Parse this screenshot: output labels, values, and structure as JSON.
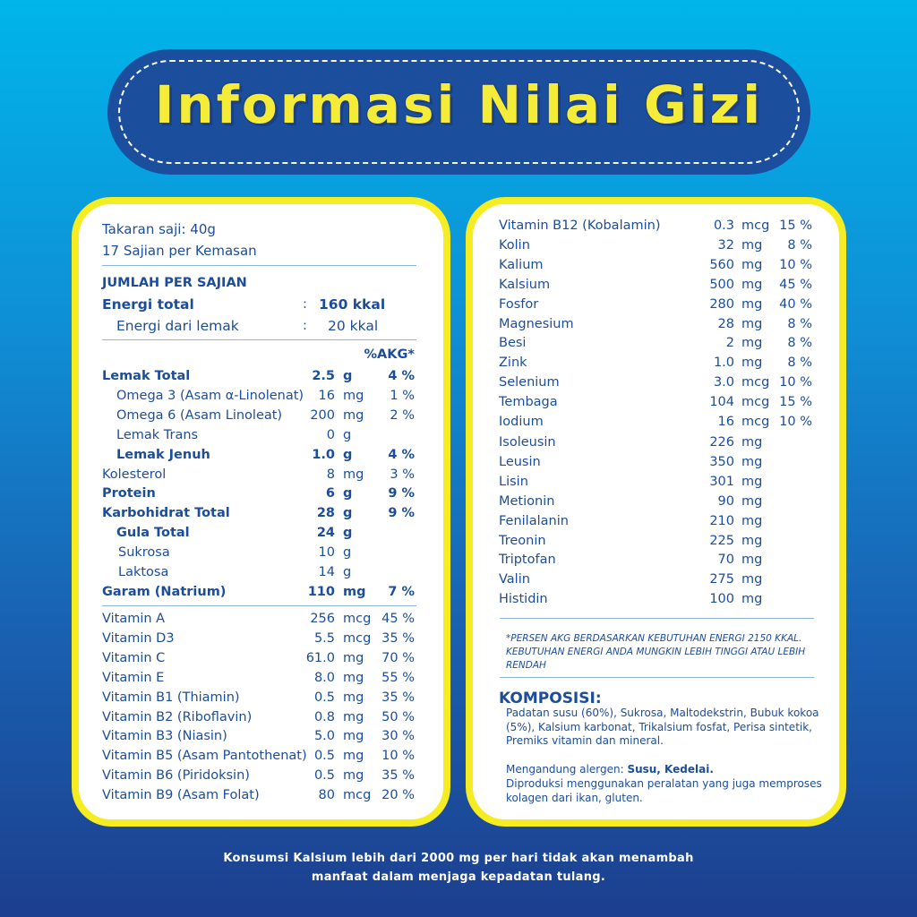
{
  "title": "Informasi Nilai Gizi",
  "left": {
    "serving_size": "Takaran saji: 40g",
    "servings": "17 Sajian per Kemasan",
    "amount_header": "JUMLAH PER SAJIAN",
    "energy_total": {
      "label": "Energi total",
      "sep": ":",
      "value": "160 kkal"
    },
    "energy_fat": {
      "label": "Energi dari lemak",
      "sep": ":",
      "value": "20 kkal"
    },
    "akg_header": "%AKG*",
    "rows": [
      {
        "name": "Lemak Total",
        "value": "2.5",
        "unit": "g",
        "pct": "4 %",
        "bold": true,
        "level": 0
      },
      {
        "name": "Omega 3 (Asam α-Linolenat)",
        "value": "16",
        "unit": "mg",
        "pct": "1 %",
        "bold": false,
        "level": 1
      },
      {
        "name": "Omega 6 (Asam Linoleat)",
        "value": "200",
        "unit": "mg",
        "pct": "2 %",
        "bold": false,
        "level": 1
      },
      {
        "name": "Lemak Trans",
        "value": "0",
        "unit": "g",
        "pct": "",
        "bold": false,
        "level": 1
      },
      {
        "name": "Lemak Jenuh",
        "value": "1.0",
        "unit": "g",
        "pct": "4 %",
        "bold": true,
        "level": 1
      },
      {
        "name": "Kolesterol",
        "value": "8",
        "unit": "mg",
        "pct": "3 %",
        "bold": false,
        "level": 0
      },
      {
        "name": "Protein",
        "value": "6",
        "unit": "g",
        "pct": "9 %",
        "bold": true,
        "level": 0
      },
      {
        "name": "Karbohidrat Total",
        "value": "28",
        "unit": "g",
        "pct": "9 %",
        "bold": true,
        "level": 0
      },
      {
        "name": "Gula Total",
        "value": "24",
        "unit": "g",
        "pct": "",
        "bold": true,
        "level": 1
      },
      {
        "name": "Sukrosa",
        "value": "10",
        "unit": "g",
        "pct": "",
        "bold": false,
        "level": 2
      },
      {
        "name": "Laktosa",
        "value": "14",
        "unit": "g",
        "pct": "",
        "bold": false,
        "level": 2
      },
      {
        "name": "Garam (Natrium)",
        "value": "110",
        "unit": "mg",
        "pct": "7 %",
        "bold": true,
        "level": 0
      }
    ],
    "vitamins": [
      {
        "name": "Vitamin A",
        "value": "256",
        "unit": "mcg",
        "pct": "45 %"
      },
      {
        "name": "Vitamin D3",
        "value": "5.5",
        "unit": "mcg",
        "pct": "35 %"
      },
      {
        "name": "Vitamin C",
        "value": "61.0",
        "unit": "mg",
        "pct": "70 %"
      },
      {
        "name": "Vitamin E",
        "value": "8.0",
        "unit": "mg",
        "pct": "55 %"
      },
      {
        "name": "Vitamin B1 (Thiamin)",
        "value": "0.5",
        "unit": "mg",
        "pct": "35 %"
      },
      {
        "name": "Vitamin B2 (Riboflavin)",
        "value": "0.8",
        "unit": "mg",
        "pct": "50 %"
      },
      {
        "name": "Vitamin B3 (Niasin)",
        "value": "5.0",
        "unit": "mg",
        "pct": "30 %"
      },
      {
        "name": "Vitamin B5 (Asam Pantothenat)",
        "value": "0.5",
        "unit": "mg",
        "pct": "10 %"
      },
      {
        "name": "Vitamin B6 (Piridoksin)",
        "value": "0.5",
        "unit": "mg",
        "pct": "35 %"
      },
      {
        "name": "Vitamin B9 (Asam Folat)",
        "value": "80",
        "unit": "mcg",
        "pct": "20 %"
      }
    ]
  },
  "right": {
    "minerals": [
      {
        "name": "Vitamin B12 (Kobalamin)",
        "value": "0.3",
        "unit": "mcg",
        "pct": "15 %"
      },
      {
        "name": "Kolin",
        "value": "32",
        "unit": "mg",
        "pct": "8 %"
      },
      {
        "name": "Kalium",
        "value": "560",
        "unit": "mg",
        "pct": "10 %"
      },
      {
        "name": "Kalsium",
        "value": "500",
        "unit": "mg",
        "pct": "45 %"
      },
      {
        "name": "Fosfor",
        "value": "280",
        "unit": "mg",
        "pct": "40 %"
      },
      {
        "name": "Magnesium",
        "value": "28",
        "unit": "mg",
        "pct": "8 %"
      },
      {
        "name": "Besi",
        "value": "2",
        "unit": "mg",
        "pct": "8 %"
      },
      {
        "name": "Zink",
        "value": "1.0",
        "unit": "mg",
        "pct": "8 %"
      },
      {
        "name": "Selenium",
        "value": "3.0",
        "unit": "mcg",
        "pct": "10 %"
      },
      {
        "name": "Tembaga",
        "value": "104",
        "unit": "mcg",
        "pct": "15 %"
      },
      {
        "name": "Iodium",
        "value": "16",
        "unit": "mcg",
        "pct": "10 %"
      }
    ],
    "amino_acids": [
      {
        "name": "Isoleusin",
        "value": "226",
        "unit": "mg",
        "pct": ""
      },
      {
        "name": "Leusin",
        "value": "350",
        "unit": "mg",
        "pct": ""
      },
      {
        "name": "Lisin",
        "value": "301",
        "unit": "mg",
        "pct": ""
      },
      {
        "name": "Metionin",
        "value": "90",
        "unit": "mg",
        "pct": ""
      },
      {
        "name": "Fenilalanin",
        "value": "210",
        "unit": "mg",
        "pct": ""
      },
      {
        "name": "Treonin",
        "value": "225",
        "unit": "mg",
        "pct": ""
      },
      {
        "name": "Triptofan",
        "value": "70",
        "unit": "mg",
        "pct": ""
      },
      {
        "name": "Valin",
        "value": "275",
        "unit": "mg",
        "pct": ""
      },
      {
        "name": "Histidin",
        "value": "100",
        "unit": "mg",
        "pct": ""
      }
    ],
    "footnote": "*PERSEN AKG BERDASARKAN KEBUTUHAN ENERGI 2150 KKAL. KEBUTUHAN ENERGI ANDA MUNGKIN LEBIH TINGGI ATAU LEBIH RENDAH",
    "composition_title": "KOMPOSISI:",
    "composition": "Padatan susu (60%), Sukrosa, Maltodekstrin, Bubuk kokoa (5%), Kalsium karbonat, Trikalsium fosfat, Perisa sintetik, Premiks vitamin dan mineral.",
    "allergen_label": "Mengandung alergen: ",
    "allergens": "Susu, Kedelai.",
    "facility_note": "Diproduksi menggunakan peralatan yang juga memproses kolagen dari ikan, gluten."
  },
  "footer": {
    "line1": "Konsumsi Kalsium lebih dari 2000 mg per hari tidak akan menambah",
    "line2": "manfaat dalam menjaga kepadatan tulang."
  },
  "colors": {
    "text": "#1c4d9a",
    "panel_border": "#f5ec22",
    "title": "#f5ec3a",
    "pill": "#1b4f9e"
  }
}
